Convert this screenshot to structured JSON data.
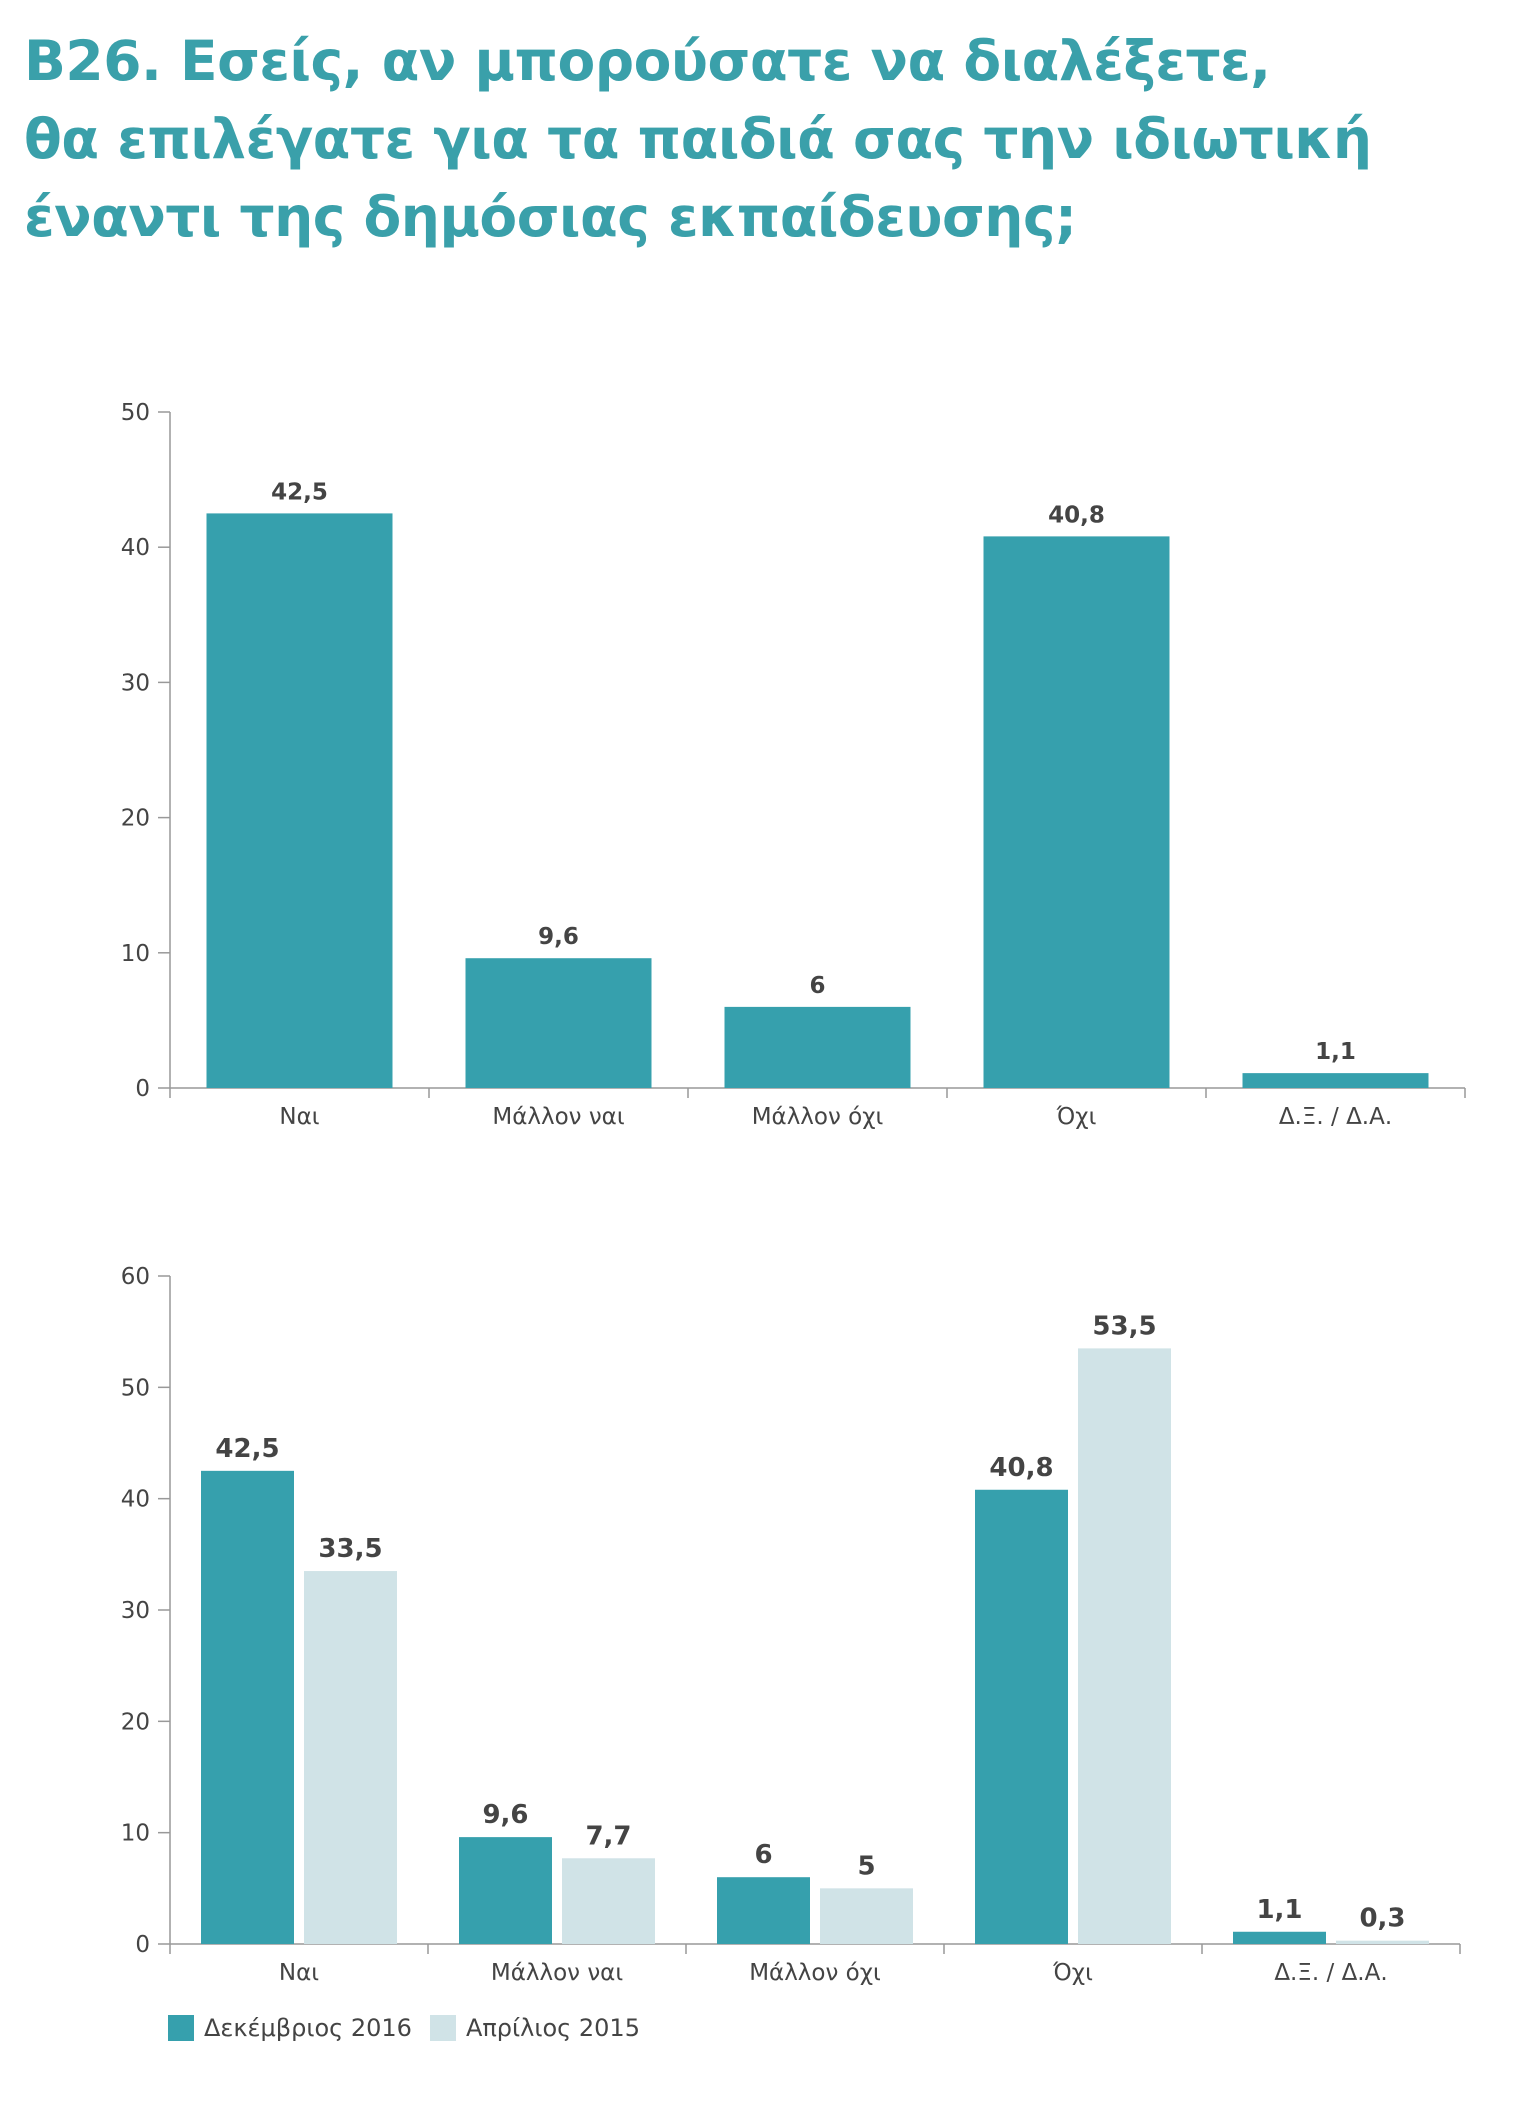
{
  "title_lines": [
    "B26. Εσείς, αν μπορούσατε να διαλέξετε,",
    "θα επιλέγατε για τα παιδιά σας την ιδιωτική",
    "έναντι της δημόσιας εκπαίδευσης;"
  ],
  "colors": {
    "dec2016": "#36a0ad",
    "apr2015": "#d0e3e7",
    "axis": "#999999",
    "text": "#444444",
    "title": "#3aa0aa"
  },
  "chart_data": [
    {
      "type": "bar",
      "categories": [
        "Ναι",
        "Μάλλον ναι",
        "Μάλλον όχι",
        "Όχι",
        "Δ.Ξ. / Δ.Α."
      ],
      "series": [
        {
          "values": [
            42.5,
            9.6,
            6,
            40.8,
            1.1
          ],
          "labels": [
            "42,5",
            "9,6",
            "6",
            "40,8",
            "1,1"
          ]
        }
      ],
      "yticks": [
        0,
        10,
        20,
        30,
        40,
        50
      ],
      "ylim": [
        0,
        50
      ],
      "grid": false
    },
    {
      "type": "bar",
      "categories": [
        "Ναι",
        "Μάλλον ναι",
        "Μάλλον όχι",
        "Όχι",
        "Δ.Ξ. / Δ.Α."
      ],
      "series": [
        {
          "name": "Δεκέμβριος 2016",
          "values": [
            42.5,
            9.6,
            6,
            40.8,
            1.1
          ],
          "labels": [
            "42,5",
            "9,6",
            "6",
            "40,8",
            "1,1"
          ]
        },
        {
          "name": "Απρίλιος 2015",
          "values": [
            33.5,
            7.7,
            5,
            53.5,
            0.3
          ],
          "labels": [
            "33,5",
            "7,7",
            "5",
            "53,5",
            "0,3"
          ]
        }
      ],
      "yticks": [
        0,
        10,
        20,
        30,
        40,
        50,
        60
      ],
      "ylim": [
        0,
        60
      ],
      "grid": false,
      "legend_position": "bottom-left"
    }
  ]
}
